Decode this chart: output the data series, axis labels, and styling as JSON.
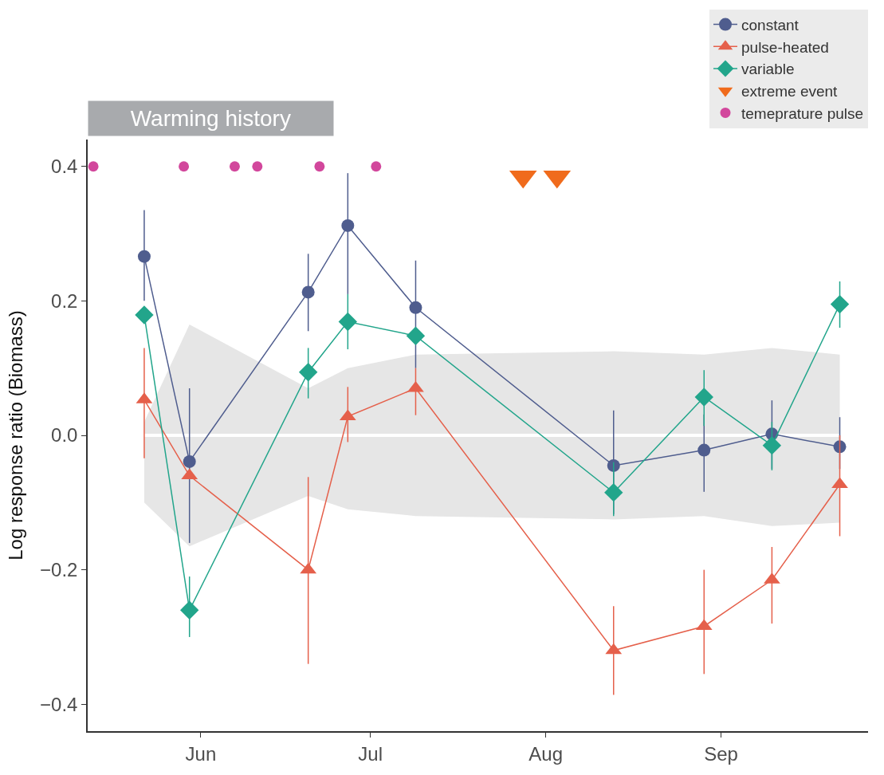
{
  "chart_data": {
    "type": "line",
    "ylabel": "Log response ratio (Biomass)",
    "xlim": [
      "--05-12",
      "--09-27"
    ],
    "xticks": [
      {
        "value": "--06-01",
        "label": "Jun"
      },
      {
        "value": "--07-01",
        "label": "Jul"
      },
      {
        "value": "--08-01",
        "label": "Aug"
      },
      {
        "value": "--09-01",
        "label": "Sep"
      }
    ],
    "ylim": [
      -0.44,
      0.44
    ],
    "yticks": [
      {
        "value": -0.4,
        "label": "−0.4"
      },
      {
        "value": -0.2,
        "label": "−0.2"
      },
      {
        "value": 0,
        "label": "0.0"
      },
      {
        "value": 0.2,
        "label": "0.2"
      },
      {
        "value": 0.4,
        "label": "0.4"
      }
    ],
    "legend": "top right",
    "annotations": [
      "Warming history"
    ],
    "series": [
      {
        "marker": "none",
        "color": "#ffffff",
        "x": [
          "--05-22",
          "--05-30",
          "--06-20",
          "--06-27",
          "--07-09",
          "--08-13",
          "--08-29",
          "--09-10",
          "--09-22"
        ],
        "values": [
          0,
          0,
          0,
          0,
          0,
          0,
          0,
          0,
          0
        ],
        "lower": [
          -0.1,
          -0.165,
          -0.09,
          -0.11,
          -0.12,
          -0.125,
          -0.12,
          -0.135,
          -0.13
        ],
        "upper": [
          0.02,
          0.165,
          0.07,
          0.1,
          0.12,
          0.125,
          0.12,
          0.13,
          0.12
        ]
      },
      {
        "name": "constant",
        "marker": "circle",
        "color": "#4f5d8e",
        "x": [
          "--05-22",
          "--05-30",
          "--06-20",
          "--06-27",
          "--07-09",
          "--08-13",
          "--08-29",
          "--09-10",
          "--09-22"
        ],
        "values": [
          0.266,
          -0.039,
          0.213,
          0.312,
          0.19,
          -0.045,
          -0.022,
          0.002,
          -0.017
        ],
        "errors": [
          [
            0.2,
            0.335
          ],
          [
            -0.16,
            0.07
          ],
          [
            0.155,
            0.27
          ],
          [
            0.21,
            0.39
          ],
          [
            0.1,
            0.26
          ],
          [
            -0.117,
            0.037
          ],
          [
            -0.084,
            0.031
          ],
          [
            -0.05,
            0.052
          ],
          [
            -0.05,
            0.027
          ]
        ]
      },
      {
        "name": "pulse-heated",
        "marker": "triangle",
        "color": "#e5604b",
        "x": [
          "--05-22",
          "--05-30",
          "--06-20",
          "--06-27",
          "--07-09",
          "--08-13",
          "--08-29",
          "--09-10",
          "--09-22"
        ],
        "values": [
          0.053,
          -0.06,
          -0.2,
          0.028,
          0.07,
          -0.32,
          -0.284,
          -0.215,
          -0.073
        ],
        "errors": [
          [
            -0.034,
            0.13
          ],
          null,
          [
            -0.34,
            -0.062
          ],
          [
            -0.01,
            0.072
          ],
          [
            0.03,
            0.1
          ],
          [
            -0.386,
            -0.254
          ],
          [
            -0.355,
            -0.2
          ],
          [
            -0.28,
            -0.166
          ],
          [
            -0.15,
            0.0
          ]
        ]
      },
      {
        "name": "variable",
        "marker": "diamond",
        "color": "#22a58b",
        "x": [
          "--05-22",
          "--05-30",
          "--06-20",
          "--06-27",
          "--07-09",
          "--08-13",
          "--08-29",
          "--09-10",
          "--09-22"
        ],
        "values": [
          0.179,
          -0.26,
          0.094,
          0.169,
          0.148,
          -0.085,
          0.057,
          -0.015,
          0.195
        ],
        "errors": [
          null,
          [
            -0.3,
            -0.21
          ],
          [
            0.055,
            0.13
          ],
          [
            0.128,
            0.21
          ],
          null,
          [
            -0.12,
            -0.04
          ],
          [
            0.014,
            0.097
          ],
          [
            -0.052,
            0.02
          ],
          [
            0.16,
            0.229
          ]
        ]
      },
      {
        "name": "extreme event",
        "type": "scatter",
        "marker": "triangle-down",
        "color": "#f06b1c",
        "x": [
          "--07-28",
          "--08-03"
        ],
        "values": [
          0.385,
          0.385
        ]
      },
      {
        "name": "temeprature pulse",
        "type": "scatter",
        "marker": "circle",
        "color": "#d2479c",
        "x": [
          "--05-13",
          "--05-29",
          "--06-07",
          "--06-11",
          "--06-22",
          "--07-02"
        ],
        "values": [
          0.4,
          0.4,
          0.4,
          0.4,
          0.4,
          0.4
        ]
      }
    ]
  }
}
